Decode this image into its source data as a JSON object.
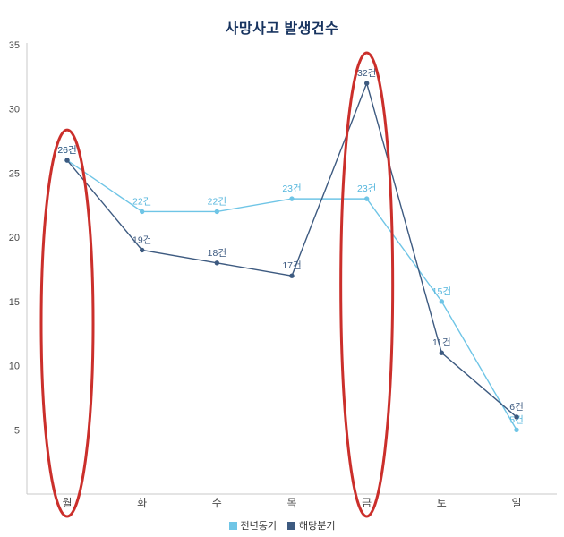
{
  "page": {
    "background": "#ffffff"
  },
  "chart_data": {
    "type": "line",
    "title": "사망사고 발생건수",
    "title_color": "#17335f",
    "categories": [
      "월",
      "화",
      "수",
      "목",
      "금",
      "토",
      "일"
    ],
    "series": [
      {
        "name": "전년동기",
        "color": "#6fc5e6",
        "label_color": "#55b6dd",
        "values": [
          26,
          22,
          22,
          23,
          23,
          15,
          5
        ]
      },
      {
        "name": "해당분기",
        "color": "#3d5a80",
        "label_color": "#3d5a80",
        "values": [
          26,
          19,
          18,
          17,
          32,
          11,
          6
        ]
      }
    ],
    "value_suffix": "건",
    "ylim": [
      0,
      35
    ],
    "yticks": [
      5,
      10,
      15,
      20,
      25,
      30,
      35
    ],
    "grid": false,
    "legend_position": "bottom",
    "axis_color": "#c8c8c8",
    "tick_label_color": "#4a4a4a",
    "annotations": [
      {
        "type": "ellipse",
        "category": "월",
        "color": "#cb2f2b"
      },
      {
        "type": "ellipse",
        "category": "금",
        "color": "#cb2f2b"
      }
    ]
  }
}
